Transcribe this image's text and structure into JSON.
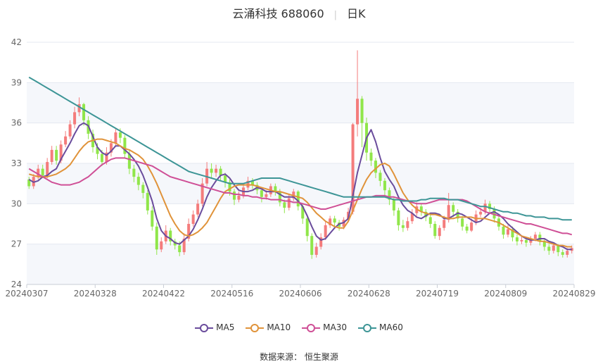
{
  "header": {
    "name_code": "云涌科技 688060",
    "period": "日K"
  },
  "source": "数据来源： 恒生聚源",
  "chart_data": {
    "type": "candlestick",
    "title": "云涌科技 688060 日K",
    "ylim": [
      24,
      42
    ],
    "yticks": [
      24,
      27,
      30,
      33,
      36,
      39,
      42
    ],
    "xticks": [
      "20240307",
      "20240328",
      "20240422",
      "20240516",
      "20240606",
      "20240628",
      "20240719",
      "20240809",
      "20240829"
    ],
    "colors": {
      "up": "#f47c7c",
      "down": "#90e64a",
      "MA5": "#6a4c9c",
      "MA10": "#e0933a",
      "MA30": "#cf4f96",
      "MA60": "#3d9596"
    },
    "candles": [
      [
        31.8,
        31.3,
        32.0,
        31.1
      ],
      [
        31.3,
        32.0,
        32.2,
        31.1
      ],
      [
        32.0,
        32.6,
        32.9,
        31.8
      ],
      [
        32.6,
        32.1,
        32.9,
        31.9
      ],
      [
        32.1,
        33.1,
        33.4,
        31.9
      ],
      [
        33.1,
        34.0,
        34.3,
        32.9
      ],
      [
        34.0,
        33.2,
        34.3,
        32.9
      ],
      [
        33.2,
        34.4,
        34.7,
        33.0
      ],
      [
        34.4,
        35.0,
        35.4,
        34.2
      ],
      [
        35.0,
        35.9,
        36.2,
        34.8
      ],
      [
        35.9,
        36.8,
        37.2,
        35.6
      ],
      [
        36.8,
        37.4,
        37.9,
        36.5
      ],
      [
        37.4,
        36.2,
        37.5,
        35.8
      ],
      [
        36.2,
        35.2,
        36.5,
        34.8
      ],
      [
        35.2,
        34.2,
        35.5,
        33.8
      ],
      [
        34.2,
        33.7,
        34.5,
        33.3
      ],
      [
        33.7,
        33.1,
        34.0,
        32.8
      ],
      [
        33.1,
        33.8,
        34.2,
        32.9
      ],
      [
        33.8,
        34.5,
        34.8,
        33.5
      ],
      [
        34.5,
        35.3,
        35.6,
        34.3
      ],
      [
        35.3,
        34.9,
        35.6,
        34.5
      ],
      [
        34.9,
        33.7,
        35.1,
        33.4
      ],
      [
        33.7,
        32.6,
        34.0,
        32.2
      ],
      [
        32.6,
        32.0,
        32.9,
        31.6
      ],
      [
        32.0,
        31.4,
        32.3,
        31.0
      ],
      [
        31.4,
        30.8,
        31.6,
        30.4
      ],
      [
        30.8,
        29.5,
        31.0,
        29.2
      ],
      [
        29.5,
        28.3,
        29.8,
        28.0
      ],
      [
        28.3,
        26.6,
        28.6,
        26.2
      ],
      [
        26.6,
        27.2,
        27.5,
        26.4
      ],
      [
        27.2,
        28.0,
        28.4,
        27.0
      ],
      [
        28.0,
        27.2,
        28.2,
        26.9
      ],
      [
        27.2,
        26.9,
        27.4,
        26.6
      ],
      [
        26.9,
        26.4,
        27.2,
        26.1
      ],
      [
        26.4,
        27.4,
        27.8,
        26.2
      ],
      [
        27.4,
        28.5,
        28.9,
        27.2
      ],
      [
        28.5,
        29.2,
        29.5,
        28.3
      ],
      [
        29.2,
        30.0,
        30.3,
        29.0
      ],
      [
        30.0,
        31.5,
        31.9,
        29.8
      ],
      [
        31.5,
        32.6,
        33.1,
        31.3
      ],
      [
        32.6,
        32.3,
        33.0,
        31.9
      ],
      [
        32.3,
        32.6,
        32.9,
        32.0
      ],
      [
        32.6,
        32.1,
        32.8,
        31.7
      ],
      [
        32.1,
        31.6,
        32.3,
        31.2
      ],
      [
        31.6,
        30.9,
        31.8,
        30.6
      ],
      [
        30.9,
        30.3,
        31.1,
        29.9
      ],
      [
        30.3,
        30.6,
        30.9,
        30.1
      ],
      [
        30.6,
        31.2,
        31.5,
        30.4
      ],
      [
        31.2,
        31.7,
        32.0,
        31.0
      ],
      [
        31.7,
        31.4,
        31.9,
        31.1
      ],
      [
        31.4,
        31.0,
        31.6,
        30.7
      ],
      [
        31.0,
        30.5,
        31.2,
        30.1
      ],
      [
        30.5,
        30.7,
        31.0,
        30.3
      ],
      [
        30.7,
        31.3,
        31.5,
        30.5
      ],
      [
        31.3,
        30.9,
        31.5,
        30.6
      ],
      [
        30.9,
        30.1,
        31.1,
        29.8
      ],
      [
        30.1,
        29.7,
        30.3,
        29.3
      ],
      [
        29.7,
        30.4,
        30.7,
        29.5
      ],
      [
        30.4,
        30.9,
        31.1,
        30.2
      ],
      [
        30.9,
        29.8,
        31.0,
        29.5
      ],
      [
        29.8,
        28.9,
        30.0,
        28.5
      ],
      [
        28.9,
        27.6,
        29.1,
        27.2
      ],
      [
        27.6,
        26.2,
        27.8,
        25.9
      ],
      [
        26.2,
        26.8,
        27.1,
        26.0
      ],
      [
        26.8,
        27.5,
        27.8,
        26.6
      ],
      [
        27.5,
        28.4,
        28.7,
        27.3
      ],
      [
        28.4,
        28.9,
        29.1,
        28.2
      ],
      [
        28.9,
        28.6,
        29.1,
        28.3
      ],
      [
        28.6,
        28.3,
        28.8,
        28.0
      ],
      [
        28.3,
        28.8,
        29.0,
        28.1
      ],
      [
        28.8,
        29.4,
        29.7,
        28.6
      ],
      [
        29.4,
        35.9,
        36.0,
        29.2
      ],
      [
        35.9,
        37.8,
        41.4,
        35.0
      ],
      [
        37.8,
        36.0,
        38.0,
        34.2
      ],
      [
        36.0,
        33.8,
        36.4,
        33.2
      ],
      [
        33.8,
        33.2,
        34.1,
        32.8
      ],
      [
        33.2,
        32.3,
        33.4,
        31.9
      ],
      [
        32.3,
        31.7,
        32.5,
        31.3
      ],
      [
        31.7,
        31.0,
        31.9,
        30.6
      ],
      [
        31.0,
        30.3,
        31.2,
        29.9
      ],
      [
        30.3,
        29.5,
        30.5,
        29.1
      ],
      [
        29.5,
        28.4,
        29.7,
        28.0
      ],
      [
        28.4,
        28.2,
        28.8,
        27.9
      ],
      [
        28.2,
        28.7,
        29.0,
        28.0
      ],
      [
        28.7,
        29.3,
        29.6,
        28.5
      ],
      [
        29.3,
        29.8,
        30.1,
        29.1
      ],
      [
        29.8,
        29.4,
        30.0,
        29.1
      ],
      [
        29.4,
        29.0,
        29.6,
        28.7
      ],
      [
        29.0,
        28.5,
        29.2,
        28.2
      ],
      [
        28.5,
        27.6,
        28.7,
        27.4
      ],
      [
        27.6,
        28.2,
        28.4,
        27.3
      ],
      [
        28.2,
        28.8,
        29.1,
        28.0
      ],
      [
        28.8,
        29.9,
        30.8,
        28.6
      ],
      [
        29.9,
        29.4,
        30.1,
        29.0
      ],
      [
        29.4,
        28.9,
        29.6,
        28.6
      ],
      [
        28.9,
        28.3,
        29.1,
        28.0
      ],
      [
        28.3,
        28.0,
        28.5,
        27.8
      ],
      [
        28.0,
        28.6,
        28.9,
        27.9
      ],
      [
        28.6,
        29.2,
        29.5,
        28.4
      ],
      [
        29.2,
        29.4,
        29.7,
        29.0
      ],
      [
        29.4,
        30.0,
        30.3,
        29.2
      ],
      [
        30.0,
        29.6,
        30.2,
        29.3
      ],
      [
        29.6,
        28.9,
        29.8,
        28.6
      ],
      [
        28.9,
        28.3,
        29.1,
        28.0
      ],
      [
        28.3,
        27.7,
        28.5,
        27.4
      ],
      [
        27.7,
        28.1,
        28.4,
        27.5
      ],
      [
        28.1,
        27.5,
        28.3,
        27.2
      ],
      [
        27.5,
        27.2,
        27.7,
        26.9
      ],
      [
        27.2,
        27.3,
        27.6,
        27.0
      ],
      [
        27.3,
        27.1,
        27.5,
        26.8
      ],
      [
        27.1,
        27.4,
        27.6,
        26.9
      ],
      [
        27.4,
        27.7,
        27.9,
        27.2
      ],
      [
        27.7,
        27.2,
        27.9,
        26.9
      ],
      [
        27.2,
        26.8,
        27.4,
        26.5
      ],
      [
        26.8,
        26.5,
        27.0,
        26.2
      ],
      [
        26.5,
        26.9,
        27.1,
        26.3
      ],
      [
        26.9,
        26.4,
        27.0,
        26.1
      ],
      [
        26.4,
        26.2,
        26.6,
        26.0
      ],
      [
        26.2,
        26.5,
        26.7,
        26.0
      ],
      [
        26.5,
        26.7,
        26.9,
        26.3
      ]
    ],
    "series": [
      {
        "name": "MA5",
        "values": [
          31.8,
          31.6,
          31.7,
          32.0,
          32.1,
          32.4,
          32.6,
          33.3,
          33.9,
          34.5,
          35.2,
          35.8,
          36.0,
          35.8,
          35.0,
          34.2,
          33.8,
          33.6,
          33.9,
          34.3,
          34.3,
          34.0,
          33.7,
          33.3,
          32.8,
          32.1,
          31.2,
          30.2,
          28.9,
          28.0,
          27.6,
          27.4,
          27.1,
          27.0,
          27.3,
          27.6,
          28.1,
          28.8,
          29.6,
          30.5,
          31.2,
          31.7,
          32.1,
          32.2,
          31.9,
          31.4,
          31.0,
          30.9,
          30.9,
          31.0,
          31.2,
          31.1,
          30.9,
          30.9,
          30.9,
          30.7,
          30.5,
          30.5,
          30.5,
          30.2,
          29.8,
          29.1,
          28.3,
          27.6,
          27.3,
          27.4,
          27.8,
          28.2,
          28.5,
          28.6,
          28.9,
          30.6,
          32.3,
          33.6,
          34.9,
          35.5,
          34.6,
          33.4,
          32.4,
          31.8,
          31.3,
          30.5,
          29.9,
          29.5,
          29.3,
          29.0,
          28.9,
          29.1,
          29.3,
          29.3,
          29.2,
          28.9,
          28.9,
          29.1,
          29.3,
          29.2,
          29.0,
          28.8,
          28.6,
          28.7,
          29.0,
          29.3,
          29.4,
          29.2,
          28.9,
          28.5,
          28.2,
          27.9,
          27.6,
          27.4,
          27.3,
          27.3,
          27.4,
          27.4,
          27.2,
          27.1,
          26.9,
          26.8,
          26.6,
          26.6
        ]
      },
      {
        "name": "MA10",
        "values": [
          32.2,
          32.1,
          32.0,
          32.0,
          32.0,
          32.1,
          32.2,
          32.4,
          32.6,
          32.9,
          33.4,
          33.9,
          34.3,
          34.6,
          34.7,
          34.8,
          34.8,
          34.7,
          34.6,
          34.5,
          34.3,
          34.1,
          34.0,
          33.8,
          33.6,
          33.3,
          32.8,
          32.2,
          31.5,
          30.7,
          29.9,
          29.1,
          28.5,
          28.0,
          27.7,
          27.6,
          27.7,
          27.9,
          28.2,
          28.6,
          29.2,
          29.8,
          30.4,
          30.9,
          31.1,
          31.3,
          31.4,
          31.4,
          31.4,
          31.4,
          31.3,
          31.2,
          31.1,
          31.0,
          30.9,
          30.9,
          30.8,
          30.7,
          30.6,
          30.5,
          30.4,
          30.1,
          29.7,
          29.3,
          29.0,
          28.7,
          28.5,
          28.3,
          28.2,
          28.2,
          28.7,
          29.5,
          30.3,
          31.1,
          31.8,
          32.3,
          32.6,
          32.9,
          33.0,
          32.8,
          32.2,
          31.5,
          30.8,
          30.3,
          29.9,
          29.6,
          29.4,
          29.3,
          29.2,
          29.2,
          29.1,
          29.0,
          28.9,
          28.9,
          29.0,
          29.0,
          29.0,
          29.0,
          28.9,
          28.9,
          28.9,
          28.8,
          28.7,
          28.6,
          28.4,
          28.2,
          28.0,
          27.8,
          27.6,
          27.5,
          27.4,
          27.3,
          27.2,
          27.2,
          27.1,
          27.0,
          26.9,
          26.9,
          26.8,
          26.8
        ]
      },
      {
        "name": "MA30",
        "values": [
          32.6,
          32.4,
          32.2,
          32.0,
          31.8,
          31.6,
          31.5,
          31.4,
          31.4,
          31.4,
          31.5,
          31.6,
          31.8,
          32.0,
          32.3,
          32.6,
          32.9,
          33.1,
          33.3,
          33.4,
          33.4,
          33.4,
          33.3,
          33.2,
          33.1,
          33.0,
          32.9,
          32.8,
          32.6,
          32.4,
          32.2,
          32.0,
          31.9,
          31.8,
          31.7,
          31.6,
          31.5,
          31.4,
          31.3,
          31.2,
          31.1,
          31.0,
          30.9,
          30.8,
          30.8,
          30.7,
          30.7,
          30.6,
          30.6,
          30.5,
          30.5,
          30.4,
          30.4,
          30.3,
          30.3,
          30.3,
          30.2,
          30.2,
          30.1,
          30.1,
          30.0,
          29.9,
          29.8,
          29.7,
          29.6,
          29.6,
          29.7,
          29.8,
          29.9,
          30.0,
          30.1,
          30.2,
          30.3,
          30.4,
          30.5,
          30.5,
          30.6,
          30.6,
          30.6,
          30.5,
          30.5,
          30.4,
          30.3,
          30.2,
          30.1,
          30.0,
          30.0,
          30.0,
          30.1,
          30.2,
          30.3,
          30.3,
          30.3,
          30.3,
          30.3,
          30.3,
          30.2,
          30.0,
          29.8,
          29.6,
          29.4,
          29.3,
          29.2,
          29.1,
          29.0,
          28.9,
          28.8,
          28.7,
          28.6,
          28.5,
          28.5,
          28.4,
          28.3,
          28.2,
          28.1,
          28.0,
          27.9,
          27.8,
          27.8,
          27.7
        ]
      },
      {
        "name": "MA60",
        "values": [
          39.4,
          39.2,
          39.0,
          38.8,
          38.6,
          38.4,
          38.2,
          38.0,
          37.8,
          37.6,
          37.4,
          37.2,
          37.0,
          36.8,
          36.6,
          36.4,
          36.2,
          36.0,
          35.8,
          35.6,
          35.4,
          35.2,
          35.0,
          34.8,
          34.6,
          34.4,
          34.2,
          34.0,
          33.8,
          33.6,
          33.4,
          33.2,
          33.0,
          32.8,
          32.6,
          32.4,
          32.3,
          32.2,
          32.1,
          32.0,
          31.9,
          31.8,
          31.7,
          31.6,
          31.5,
          31.5,
          31.5,
          31.5,
          31.6,
          31.7,
          31.8,
          31.9,
          31.9,
          31.9,
          31.9,
          31.9,
          31.8,
          31.7,
          31.6,
          31.5,
          31.4,
          31.3,
          31.2,
          31.1,
          31.0,
          30.9,
          30.8,
          30.7,
          30.6,
          30.5,
          30.5,
          30.5,
          30.5,
          30.5,
          30.5,
          30.5,
          30.5,
          30.5,
          30.5,
          30.4,
          30.3,
          30.3,
          30.2,
          30.2,
          30.2,
          30.2,
          30.3,
          30.3,
          30.4,
          30.4,
          30.4,
          30.4,
          30.3,
          30.3,
          30.3,
          30.2,
          30.1,
          30.0,
          29.9,
          29.8,
          29.8,
          29.7,
          29.6,
          29.5,
          29.4,
          29.4,
          29.3,
          29.3,
          29.2,
          29.1,
          29.1,
          29.0,
          29.0,
          29.0,
          28.9,
          28.9,
          28.9,
          28.8,
          28.8,
          28.8
        ]
      }
    ]
  }
}
